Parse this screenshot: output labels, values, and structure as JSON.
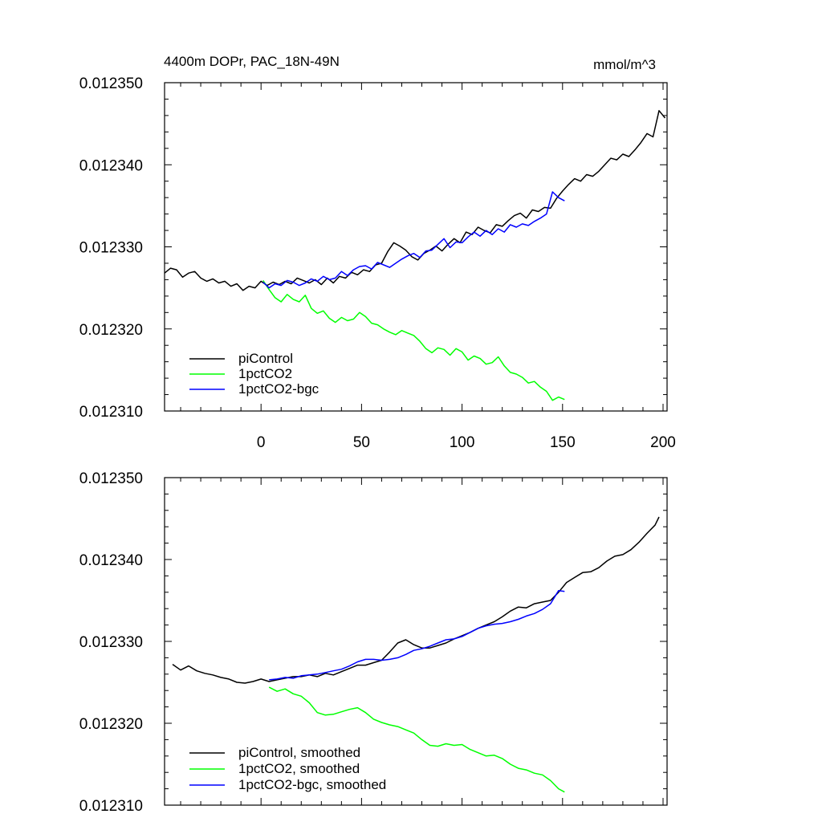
{
  "colors": {
    "piControl": "#000000",
    "1pctCO2": "#00ff00",
    "1pctCO2-bgc": "#0000ff"
  },
  "chart_data": [
    {
      "type": "line",
      "title_left": "4400m DOPr, PAC_18N-49N",
      "title_right": "mmol/m^3",
      "xlim": [
        -48,
        202
      ],
      "ylim": [
        0.01231,
        0.01235
      ],
      "xticks": [
        0,
        50,
        100,
        150,
        200
      ],
      "xtick_labels": [
        "0",
        "50",
        "100",
        "150",
        "200"
      ],
      "yticks": [
        0.01231,
        0.01232,
        0.01233,
        0.01234,
        0.01235
      ],
      "ytick_labels": [
        "0.012310",
        "0.012320",
        "0.012330",
        "0.012340",
        "0.012350"
      ],
      "legend_location": "bottom-left",
      "series": [
        {
          "name": "piControl",
          "color_key": "piControl",
          "x": [
            -48,
            -45,
            -42,
            -39,
            -36,
            -33,
            -30,
            -27,
            -24,
            -21,
            -18,
            -15,
            -12,
            -9,
            -6,
            -3,
            0,
            3,
            6,
            9,
            12,
            15,
            18,
            21,
            24,
            27,
            30,
            33,
            36,
            39,
            42,
            45,
            48,
            51,
            54,
            57,
            60,
            63,
            66,
            69,
            72,
            75,
            78,
            81,
            84,
            87,
            90,
            93,
            96,
            99,
            102,
            105,
            108,
            111,
            114,
            117,
            120,
            123,
            126,
            129,
            132,
            135,
            138,
            141,
            144,
            147,
            150,
            153,
            156,
            159,
            162,
            165,
            168,
            171,
            174,
            177,
            180,
            183,
            186,
            189,
            192,
            195,
            198,
            201
          ],
          "values": [
            0.0123268,
            0.0123274,
            0.0123272,
            0.0123263,
            0.0123268,
            0.012327,
            0.0123262,
            0.0123258,
            0.0123261,
            0.0123256,
            0.0123258,
            0.0123252,
            0.0123255,
            0.0123247,
            0.0123252,
            0.012325,
            0.0123258,
            0.0123253,
            0.0123257,
            0.0123254,
            0.0123258,
            0.0123255,
            0.0123262,
            0.0123259,
            0.0123256,
            0.012326,
            0.0123254,
            0.0123262,
            0.0123256,
            0.0123264,
            0.0123262,
            0.0123269,
            0.0123266,
            0.0123272,
            0.012327,
            0.0123278,
            0.012328,
            0.0123294,
            0.0123305,
            0.0123301,
            0.0123296,
            0.0123288,
            0.0123284,
            0.0123292,
            0.0123296,
            0.0123301,
            0.0123295,
            0.0123303,
            0.012331,
            0.0123305,
            0.0123318,
            0.0123315,
            0.0123324,
            0.012332,
            0.0123317,
            0.0123327,
            0.0123325,
            0.0123332,
            0.0123338,
            0.0123341,
            0.0123335,
            0.0123345,
            0.0123343,
            0.0123348,
            0.0123347,
            0.0123359,
            0.0123368,
            0.0123376,
            0.0123383,
            0.012338,
            0.0123388,
            0.0123386,
            0.0123392,
            0.01234,
            0.0123408,
            0.0123406,
            0.0123413,
            0.012341,
            0.0123418,
            0.0123427,
            0.0123438,
            0.0123434,
            0.0123466,
            0.0123457
          ]
        },
        {
          "name": "1pctCO2",
          "color_key": "1pctCO2",
          "x": [
            1,
            4,
            7,
            10,
            13,
            16,
            19,
            22,
            25,
            28,
            31,
            34,
            37,
            40,
            43,
            46,
            49,
            52,
            55,
            58,
            61,
            64,
            67,
            70,
            73,
            76,
            79,
            82,
            85,
            88,
            91,
            94,
            97,
            100,
            103,
            106,
            109,
            112,
            115,
            118,
            121,
            124,
            127,
            130,
            133,
            136,
            139,
            142,
            145,
            148,
            151
          ],
          "values": [
            0.0123259,
            0.0123248,
            0.0123238,
            0.0123233,
            0.0123242,
            0.0123236,
            0.0123233,
            0.0123241,
            0.0123225,
            0.0123219,
            0.0123222,
            0.0123213,
            0.0123208,
            0.0123214,
            0.012321,
            0.0123212,
            0.012322,
            0.0123215,
            0.0123207,
            0.0123205,
            0.01232,
            0.0123196,
            0.0123193,
            0.0123198,
            0.0123195,
            0.0123192,
            0.0123185,
            0.0123176,
            0.0123171,
            0.0123177,
            0.0123175,
            0.0123168,
            0.0123176,
            0.0123172,
            0.0123162,
            0.0123167,
            0.0123164,
            0.0123157,
            0.0123159,
            0.0123166,
            0.0123155,
            0.0123147,
            0.0123145,
            0.0123141,
            0.0123134,
            0.0123136,
            0.0123129,
            0.0123124,
            0.0123113,
            0.0123117,
            0.0123114
          ]
        },
        {
          "name": "1pctCO2-bgc",
          "color_key": "1pctCO2-bgc",
          "x": [
            1,
            4,
            7,
            10,
            13,
            16,
            19,
            22,
            25,
            28,
            31,
            34,
            37,
            40,
            43,
            46,
            49,
            52,
            55,
            58,
            61,
            64,
            67,
            70,
            73,
            76,
            79,
            82,
            85,
            88,
            91,
            94,
            97,
            100,
            103,
            106,
            109,
            112,
            115,
            118,
            121,
            124,
            127,
            130,
            133,
            136,
            139,
            142,
            145,
            148,
            151
          ],
          "values": [
            0.0123257,
            0.012325,
            0.0123255,
            0.0123253,
            0.0123259,
            0.0123257,
            0.0123253,
            0.0123256,
            0.0123261,
            0.0123258,
            0.0123264,
            0.012326,
            0.0123262,
            0.012327,
            0.0123265,
            0.0123272,
            0.0123276,
            0.0123277,
            0.0123273,
            0.0123281,
            0.0123278,
            0.0123275,
            0.012328,
            0.0123285,
            0.0123289,
            0.0123292,
            0.0123287,
            0.0123295,
            0.0123296,
            0.0123303,
            0.012331,
            0.0123299,
            0.0123306,
            0.0123305,
            0.0123312,
            0.0123318,
            0.0123313,
            0.012332,
            0.0123315,
            0.0123322,
            0.0123318,
            0.0123327,
            0.0123324,
            0.0123328,
            0.0123326,
            0.0123331,
            0.0123335,
            0.012334,
            0.0123367,
            0.012336,
            0.0123356
          ]
        }
      ]
    },
    {
      "type": "line",
      "xlim": [
        -48,
        202
      ],
      "ylim": [
        0.01231,
        0.01235
      ],
      "xticks": [
        0,
        50,
        100,
        150,
        200
      ],
      "yticks": [
        0.01231,
        0.01232,
        0.01233,
        0.01234,
        0.01235
      ],
      "ytick_labels": [
        "0.012310",
        "0.012320",
        "0.012330",
        "0.012340",
        "0.012350"
      ],
      "legend_location": "bottom-left",
      "series": [
        {
          "name": "piControl, smoothed",
          "color_key": "piControl",
          "x": [
            -44,
            -40,
            -36,
            -32,
            -28,
            -24,
            -20,
            -16,
            -12,
            -8,
            -4,
            0,
            4,
            8,
            12,
            16,
            20,
            24,
            28,
            32,
            36,
            40,
            44,
            48,
            52,
            56,
            60,
            64,
            68,
            72,
            76,
            80,
            84,
            88,
            92,
            96,
            100,
            104,
            108,
            112,
            116,
            120,
            124,
            128,
            132,
            136,
            140,
            144,
            148,
            152,
            156,
            160,
            164,
            168,
            172,
            176,
            180,
            184,
            188,
            192,
            196,
            198
          ],
          "values": [
            0.0123272,
            0.0123265,
            0.012327,
            0.0123264,
            0.0123261,
            0.0123259,
            0.0123256,
            0.0123254,
            0.012325,
            0.0123249,
            0.0123251,
            0.0123254,
            0.0123251,
            0.0123253,
            0.0123255,
            0.0123257,
            0.0123257,
            0.0123259,
            0.0123257,
            0.0123261,
            0.0123259,
            0.0123263,
            0.0123267,
            0.0123271,
            0.0123271,
            0.0123274,
            0.0123277,
            0.0123287,
            0.0123298,
            0.0123302,
            0.0123296,
            0.0123292,
            0.0123292,
            0.0123295,
            0.0123298,
            0.0123303,
            0.0123307,
            0.0123311,
            0.0123316,
            0.012332,
            0.0123324,
            0.012333,
            0.0123337,
            0.0123342,
            0.0123341,
            0.0123346,
            0.0123348,
            0.012335,
            0.012336,
            0.0123372,
            0.0123378,
            0.0123384,
            0.0123385,
            0.012339,
            0.0123398,
            0.0123404,
            0.0123406,
            0.0123412,
            0.0123421,
            0.0123432,
            0.0123442,
            0.0123452
          ]
        },
        {
          "name": "1pctCO2, smoothed",
          "color_key": "1pctCO2",
          "x": [
            4,
            8,
            12,
            16,
            20,
            24,
            28,
            32,
            36,
            40,
            44,
            48,
            52,
            56,
            60,
            64,
            68,
            72,
            76,
            80,
            84,
            88,
            92,
            96,
            100,
            104,
            108,
            112,
            116,
            120,
            124,
            128,
            132,
            136,
            140,
            144,
            148,
            151
          ],
          "values": [
            0.0123244,
            0.0123239,
            0.0123242,
            0.0123236,
            0.0123233,
            0.0123225,
            0.0123213,
            0.012321,
            0.0123211,
            0.0123214,
            0.0123217,
            0.0123219,
            0.0123213,
            0.0123205,
            0.0123201,
            0.0123198,
            0.0123196,
            0.0123192,
            0.0123188,
            0.012318,
            0.0123173,
            0.0123172,
            0.0123175,
            0.0123173,
            0.0123174,
            0.0123168,
            0.0123164,
            0.012316,
            0.0123161,
            0.0123157,
            0.012315,
            0.0123145,
            0.0123143,
            0.0123139,
            0.0123137,
            0.012313,
            0.012312,
            0.0123116
          ]
        },
        {
          "name": "1pctCO2-bgc, smoothed",
          "color_key": "1pctCO2-bgc",
          "x": [
            4,
            8,
            12,
            16,
            20,
            24,
            28,
            32,
            36,
            40,
            44,
            48,
            52,
            56,
            60,
            64,
            68,
            72,
            76,
            80,
            84,
            88,
            92,
            96,
            100,
            104,
            108,
            112,
            116,
            120,
            124,
            128,
            132,
            136,
            140,
            144,
            148,
            151
          ],
          "values": [
            0.0123253,
            0.0123254,
            0.0123256,
            0.0123255,
            0.0123258,
            0.0123259,
            0.012326,
            0.0123262,
            0.0123264,
            0.0123266,
            0.012327,
            0.0123275,
            0.0123278,
            0.0123278,
            0.0123277,
            0.0123278,
            0.012328,
            0.0123284,
            0.0123289,
            0.0123291,
            0.0123294,
            0.0123298,
            0.0123302,
            0.0123303,
            0.0123306,
            0.0123311,
            0.0123316,
            0.0123319,
            0.0123321,
            0.0123322,
            0.0123324,
            0.0123327,
            0.0123331,
            0.0123334,
            0.0123339,
            0.0123346,
            0.0123362,
            0.0123361
          ]
        }
      ]
    }
  ]
}
